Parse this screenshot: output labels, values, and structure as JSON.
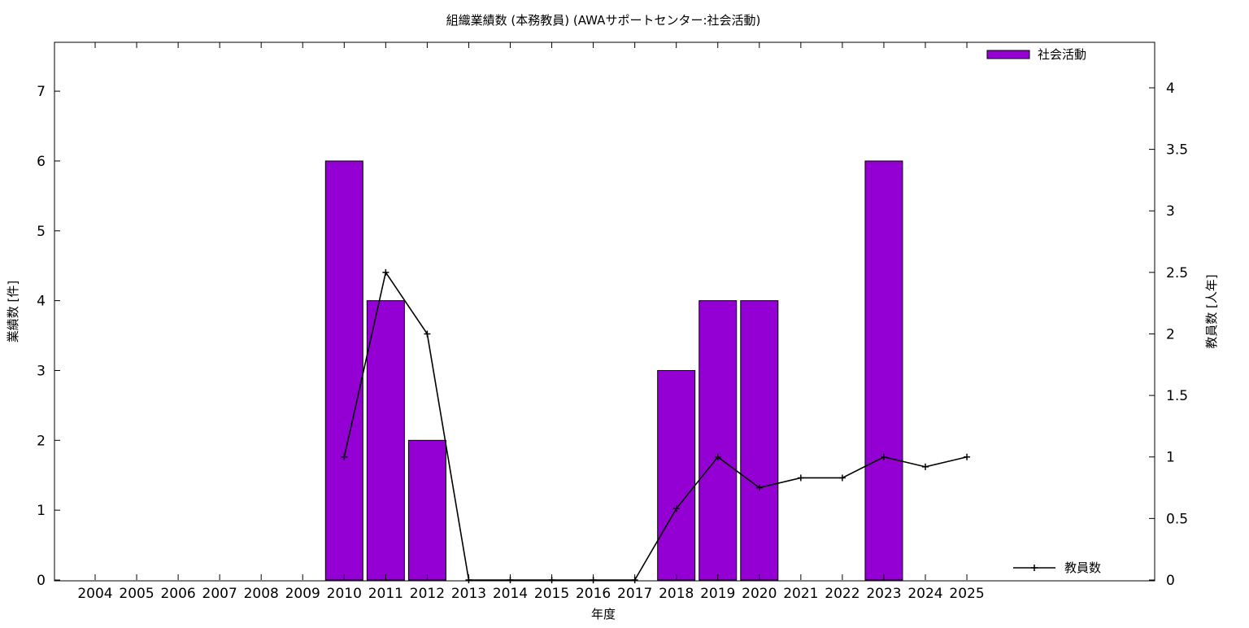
{
  "chart_data": {
    "type": "bar",
    "title": "組織業績数 (本務教員) (AWAサポートセンター:社会活動)",
    "xlabel": "年度",
    "ylabel": "業績数 [件]",
    "y2label": "教員数 [人年]",
    "categories": [
      "2004",
      "2005",
      "2006",
      "2007",
      "2008",
      "2009",
      "2010",
      "2011",
      "2012",
      "2013",
      "2014",
      "2015",
      "2016",
      "2017",
      "2018",
      "2019",
      "2020",
      "2021",
      "2022",
      "2023",
      "2024",
      "2025"
    ],
    "ylim": [
      0,
      7.7
    ],
    "y2lim": [
      0,
      4.37
    ],
    "yticks": [
      "0",
      "1",
      "2",
      "3",
      "4",
      "5",
      "6",
      "7"
    ],
    "y2ticks": [
      "0",
      "0.5",
      "1",
      "1.5",
      "2",
      "2.5",
      "3",
      "3.5",
      "4"
    ],
    "grid": false,
    "legend_position": "top-right",
    "series": [
      {
        "name": "社会活動",
        "type": "bar",
        "axis": "left",
        "color": "#9400D3",
        "values": [
          0,
          0,
          0,
          0,
          0,
          0,
          6,
          4,
          2,
          0,
          0,
          0,
          0,
          0,
          3,
          4,
          4,
          0,
          0,
          6,
          0,
          0
        ]
      },
      {
        "name": "教員数",
        "type": "line",
        "axis": "right",
        "color": "#000000",
        "x": [
          "2010",
          "2011",
          "2012",
          "2013",
          "2014",
          "2015",
          "2016",
          "2017",
          "2018",
          "2019",
          "2020",
          "2021",
          "2022",
          "2023",
          "2024",
          "2025"
        ],
        "values": [
          1,
          2.5,
          2,
          0,
          0,
          0,
          0,
          0,
          0.58,
          1,
          0.75,
          0.83,
          0.83,
          1,
          0.92,
          1
        ]
      }
    ]
  }
}
